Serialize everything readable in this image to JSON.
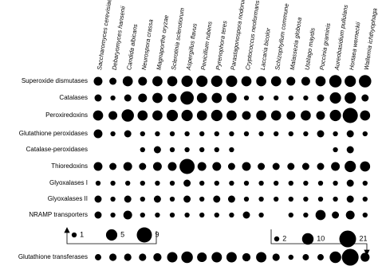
{
  "chart_data": {
    "type": "bubble",
    "color": "#000000",
    "categories": [
      "Saccharomyces cerevisiae",
      "Debaryomyces hansenii",
      "Candida albicans",
      "Neurospora crassa",
      "Magnaporthe oryzae",
      "Sclerotinia sclerotiorum",
      "Aspergillus flavus",
      "Penicillium rubens",
      "Pyrenophora teres",
      "Parastagonospora nodorum",
      "Cryptococcus neoformans",
      "Laccaria bicolor",
      "Schizophyllum commune",
      "Malassezia globosa",
      "Ustilago maydis",
      "Puccinia graminis",
      "Aureobasidium pullulans",
      "Hortaea werneckii",
      "Wallemia ichthyophaga"
    ],
    "panels": [
      {
        "legend_sizes": [
          1,
          5,
          9
        ],
        "series": [
          {
            "name": "Superoxide dismutases",
            "values": [
              3,
              2,
              4,
              3,
              4,
              4,
              5,
              5,
              5,
              5,
              4,
              4,
              4,
              3,
              3,
              4,
              6,
              5,
              6
            ]
          },
          {
            "name": "Catalases",
            "values": [
              2,
              1,
              2,
              3,
              4,
              3,
              7,
              4,
              4,
              4,
              1,
              1,
              1,
              1,
              1,
              2,
              5,
              5,
              2
            ]
          },
          {
            "name": "Peroxiredoxins",
            "values": [
              4,
              3,
              6,
              4,
              4,
              5,
              5,
              4,
              5,
              4,
              3,
              4,
              4,
              3,
              4,
              3,
              5,
              9,
              4
            ]
          },
          {
            "name": "Glutathione peroxidases",
            "values": [
              3,
              1,
              2,
              1,
              1,
              1,
              1,
              1,
              1,
              1,
              1,
              1,
              1,
              1,
              1,
              2,
              1,
              2,
              1
            ]
          },
          {
            "name": "Catalase-peroxidases",
            "values": [
              null,
              null,
              null,
              1,
              2,
              1,
              1,
              1,
              1,
              1,
              null,
              null,
              null,
              null,
              null,
              null,
              1,
              2,
              null
            ]
          },
          {
            "name": "Thioredoxins",
            "values": [
              3,
              2,
              3,
              2,
              3,
              3,
              9,
              3,
              3,
              2,
              3,
              2,
              2,
              2,
              2,
              2,
              3,
              5,
              4
            ]
          },
          {
            "name": "Glyoxalases I",
            "values": [
              1,
              1,
              1,
              1,
              1,
              1,
              2,
              1,
              1,
              1,
              1,
              1,
              1,
              1,
              1,
              1,
              1,
              2,
              1
            ]
          },
          {
            "name": "Glyoxalases II",
            "values": [
              2,
              1,
              2,
              1,
              2,
              1,
              2,
              1,
              2,
              2,
              1,
              1,
              1,
              1,
              1,
              1,
              1,
              2,
              1
            ]
          },
          {
            "name": "NRAMP transporters",
            "values": [
              2,
              1,
              3,
              1,
              1,
              1,
              1,
              1,
              1,
              1,
              2,
              1,
              null,
              1,
              1,
              4,
              2,
              3,
              1
            ]
          }
        ]
      },
      {
        "legend_sizes": [
          2,
          10,
          21
        ],
        "series": [
          {
            "name": "Glutathione transferases",
            "values": [
              3,
              4,
              4,
              4,
              5,
              8,
              10,
              7,
              8,
              8,
              5,
              8,
              4,
              2,
              3,
              3,
              10,
              21,
              6
            ]
          }
        ]
      }
    ]
  }
}
